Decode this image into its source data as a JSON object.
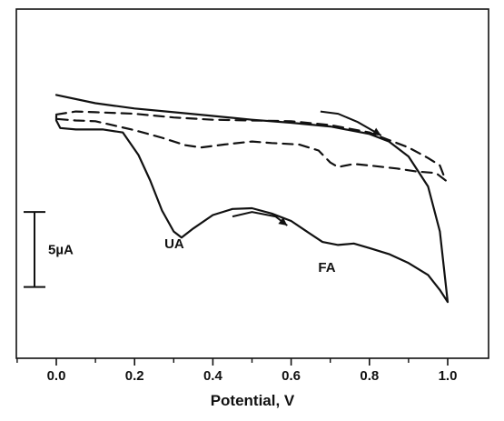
{
  "chart_data": {
    "type": "line",
    "title": "",
    "xlabel": "Potential, V",
    "ylabel": "",
    "xlim": [
      -0.1,
      1.05
    ],
    "x_ticks": [
      "0.0",
      "0.2",
      "0.4",
      "0.6",
      "0.8",
      "1.0"
    ],
    "y_unit_scale": [
      0,
      20
    ],
    "grid": false,
    "legend": "none",
    "scale_bar": {
      "label": "5µA",
      "value": 5
    },
    "annotations": [
      {
        "text": "UA",
        "x": 0.32,
        "y": 6.5
      },
      {
        "text": "FA",
        "x": 0.71,
        "y": 4.9
      }
    ],
    "series": [
      {
        "style": "solid",
        "points": [
          [
            0.0,
            16.7
          ],
          [
            0.1,
            16.15
          ],
          [
            0.2,
            15.8
          ],
          [
            0.3,
            15.55
          ],
          [
            0.4,
            15.3
          ],
          [
            0.5,
            15.05
          ],
          [
            0.6,
            14.85
          ],
          [
            0.7,
            14.6
          ],
          [
            0.8,
            14.1
          ],
          [
            0.85,
            13.6
          ],
          [
            0.9,
            12.6
          ],
          [
            0.95,
            10.6
          ],
          [
            0.98,
            7.6
          ],
          [
            1.0,
            2.9
          ],
          [
            0.98,
            3.7
          ],
          [
            0.95,
            4.7
          ],
          [
            0.9,
            5.5
          ],
          [
            0.85,
            6.1
          ],
          [
            0.8,
            6.5
          ],
          [
            0.76,
            6.8
          ],
          [
            0.72,
            6.7
          ],
          [
            0.68,
            6.9
          ],
          [
            0.64,
            7.6
          ],
          [
            0.6,
            8.3
          ],
          [
            0.55,
            8.8
          ],
          [
            0.5,
            9.15
          ],
          [
            0.45,
            9.1
          ],
          [
            0.4,
            8.7
          ],
          [
            0.35,
            7.8
          ],
          [
            0.32,
            7.2
          ],
          [
            0.3,
            7.6
          ],
          [
            0.27,
            9.0
          ],
          [
            0.24,
            11.0
          ],
          [
            0.21,
            12.7
          ],
          [
            0.17,
            14.2
          ],
          [
            0.12,
            14.4
          ],
          [
            0.05,
            14.4
          ],
          [
            0.01,
            14.5
          ],
          [
            0.0,
            15.0
          ],
          [
            0.0,
            15.3
          ]
        ]
      },
      {
        "style": "dashed",
        "points": [
          [
            0.0,
            15.4
          ],
          [
            0.05,
            15.6
          ],
          [
            0.1,
            15.55
          ],
          [
            0.2,
            15.45
          ],
          [
            0.3,
            15.2
          ],
          [
            0.4,
            15.05
          ],
          [
            0.5,
            15.0
          ],
          [
            0.6,
            14.95
          ],
          [
            0.7,
            14.7
          ],
          [
            0.8,
            14.2
          ],
          [
            0.85,
            13.7
          ],
          [
            0.9,
            13.2
          ],
          [
            0.95,
            12.5
          ],
          [
            0.98,
            12.0
          ],
          [
            0.995,
            11.0
          ],
          [
            0.97,
            11.5
          ],
          [
            0.92,
            11.6
          ],
          [
            0.87,
            11.8
          ],
          [
            0.8,
            12.0
          ],
          [
            0.76,
            12.1
          ],
          [
            0.72,
            11.9
          ],
          [
            0.7,
            12.2
          ],
          [
            0.67,
            13.0
          ],
          [
            0.62,
            13.4
          ],
          [
            0.55,
            13.5
          ],
          [
            0.5,
            13.6
          ],
          [
            0.43,
            13.4
          ],
          [
            0.37,
            13.2
          ],
          [
            0.33,
            13.35
          ],
          [
            0.27,
            13.85
          ],
          [
            0.2,
            14.35
          ],
          [
            0.1,
            14.95
          ],
          [
            0.05,
            15.0
          ],
          [
            0.0,
            15.1
          ],
          [
            0.0,
            15.4
          ]
        ]
      }
    ],
    "direction_arrows": [
      {
        "points": [
          [
            0.45,
            8.6
          ],
          [
            0.5,
            8.9
          ],
          [
            0.56,
            8.6
          ],
          [
            0.59,
            8.0
          ]
        ]
      },
      {
        "points": [
          [
            0.675,
            15.6
          ],
          [
            0.72,
            15.45
          ],
          [
            0.77,
            14.9
          ],
          [
            0.83,
            14.0
          ]
        ]
      }
    ]
  }
}
